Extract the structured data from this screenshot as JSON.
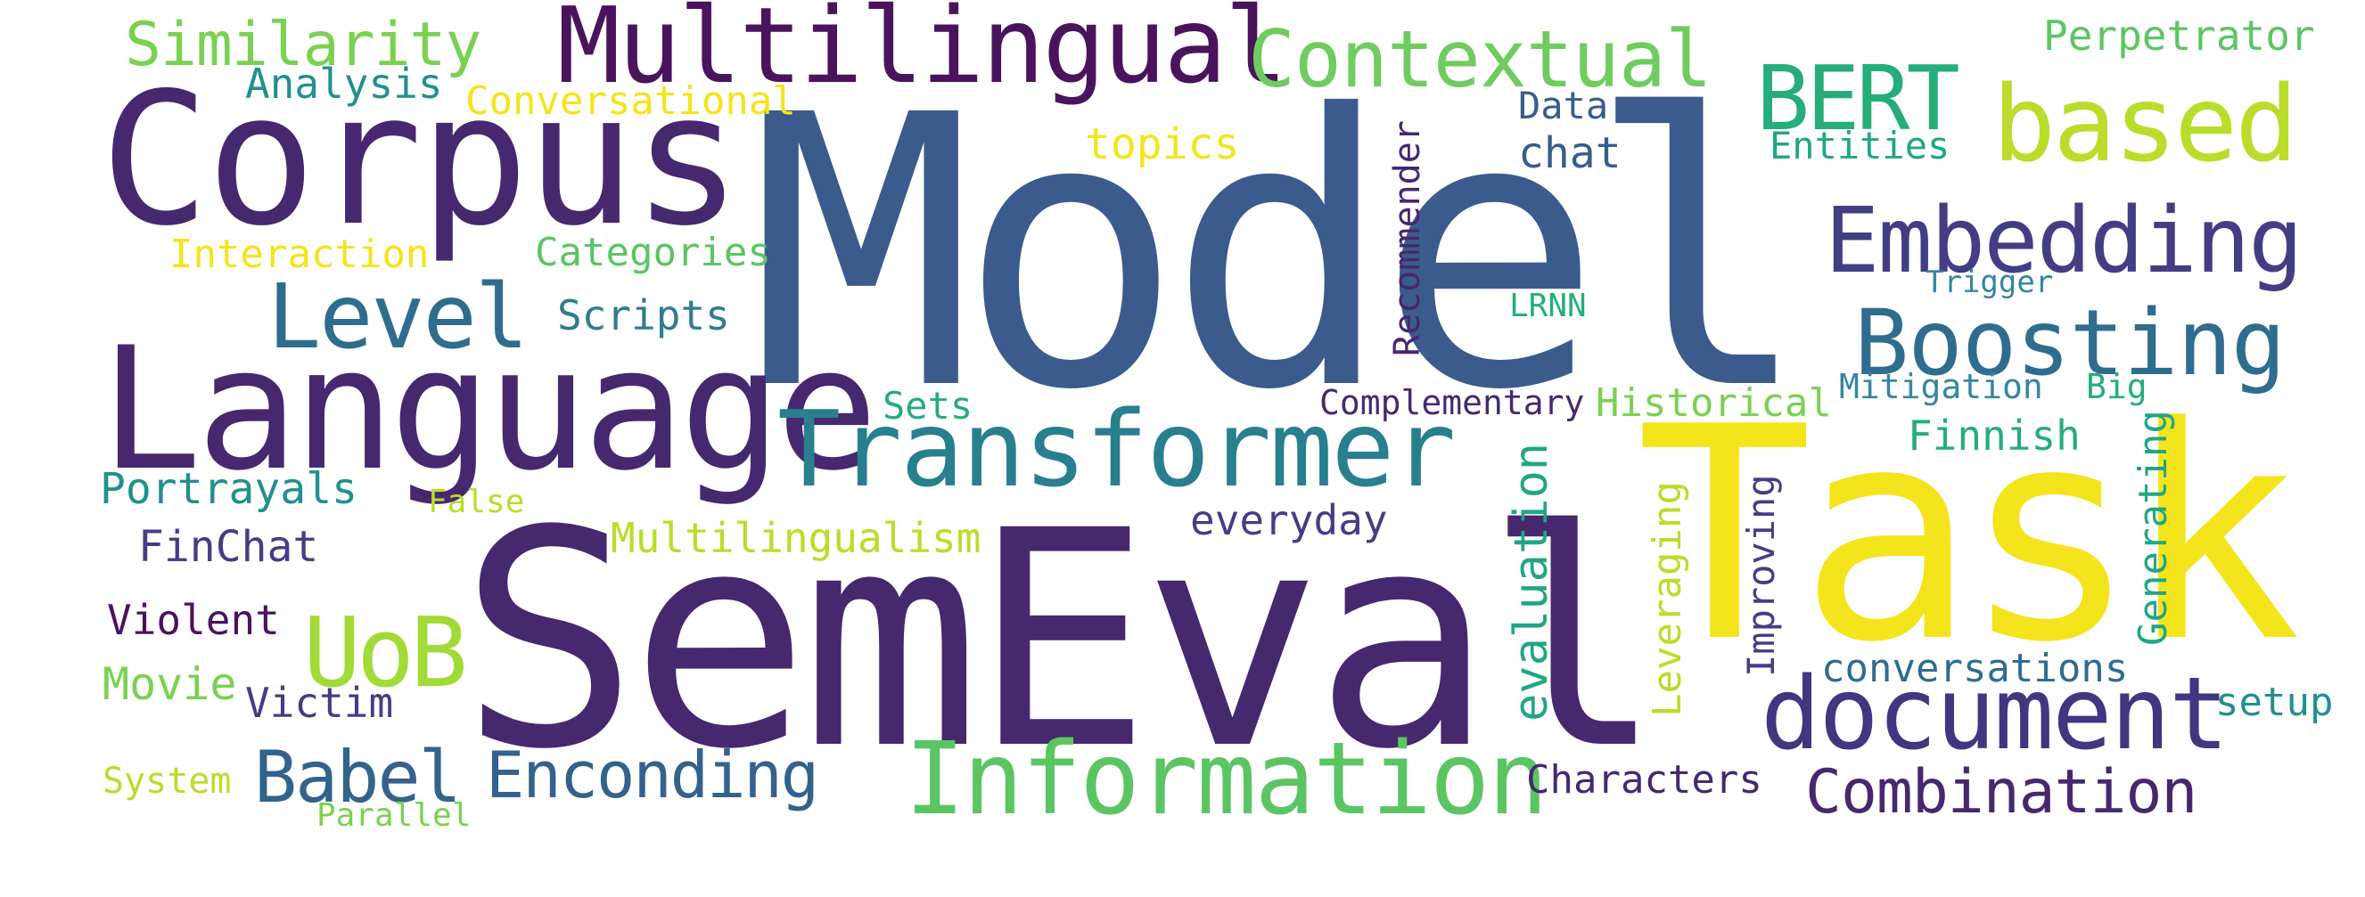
{
  "words": [
    {
      "text": "Model",
      "color": "#3b5b8c",
      "rotated": false
    },
    {
      "text": "SemEval",
      "color": "#46286f",
      "rotated": false
    },
    {
      "text": "Task",
      "color": "#f4e41c",
      "rotated": false
    },
    {
      "text": "Corpus",
      "color": "#46286f",
      "rotated": false
    },
    {
      "text": "Language",
      "color": "#46286f",
      "rotated": false
    },
    {
      "text": "Multilingual",
      "color": "#4a145d",
      "rotated": false
    },
    {
      "text": "Transformer",
      "color": "#287f8e",
      "rotated": false
    },
    {
      "text": "Information",
      "color": "#5cc563",
      "rotated": false
    },
    {
      "text": "document",
      "color": "#3f377f",
      "rotated": false
    },
    {
      "text": "Embedding",
      "color": "#433e84",
      "rotated": false
    },
    {
      "text": "Boosting",
      "color": "#2f6d8e",
      "rotated": false
    },
    {
      "text": "based",
      "color": "#b9dd2a",
      "rotated": false
    },
    {
      "text": "BERT",
      "color": "#25ad7a",
      "rotated": false
    },
    {
      "text": "Contextual",
      "color": "#6fcc5e",
      "rotated": false
    },
    {
      "text": "Level",
      "color": "#2f6d8e",
      "rotated": false
    },
    {
      "text": "Similarity",
      "color": "#7ad151",
      "rotated": false
    },
    {
      "text": "UoB",
      "color": "#a2da37",
      "rotated": false
    },
    {
      "text": "Babel",
      "color": "#33628d",
      "rotated": false
    },
    {
      "text": "Enconding",
      "color": "#33628d",
      "rotated": false
    },
    {
      "text": "Combination",
      "color": "#46286f",
      "rotated": false
    },
    {
      "text": "Perpetrator",
      "color": "#5cc563",
      "rotated": false
    },
    {
      "text": "Analysis",
      "color": "#21908d",
      "rotated": false
    },
    {
      "text": "Conversational",
      "color": "#f4e41c",
      "rotated": false
    },
    {
      "text": "topics",
      "color": "#f4e41c",
      "rotated": false
    },
    {
      "text": "Data",
      "color": "#365e8c",
      "rotated": false
    },
    {
      "text": "chat",
      "color": "#365e8c",
      "rotated": false
    },
    {
      "text": "Entities",
      "color": "#21a685",
      "rotated": false
    },
    {
      "text": "Interaction",
      "color": "#f4e41c",
      "rotated": false
    },
    {
      "text": "Categories",
      "color": "#5cc563",
      "rotated": false
    },
    {
      "text": "Scripts",
      "color": "#2f7d8e",
      "rotated": false
    },
    {
      "text": "Trigger",
      "color": "#3585a3",
      "rotated": false
    },
    {
      "text": "LRNN",
      "color": "#25ad7a",
      "rotated": false
    },
    {
      "text": "Recommender",
      "color": "#46286f",
      "rotated": true
    },
    {
      "text": "Sets",
      "color": "#25ad7a",
      "rotated": false
    },
    {
      "text": "Complementary",
      "color": "#46286f",
      "rotated": false
    },
    {
      "text": "Historical",
      "color": "#7ad151",
      "rotated": false
    },
    {
      "text": "Mitigation",
      "color": "#3585a3",
      "rotated": false
    },
    {
      "text": "Big",
      "color": "#25ad7a",
      "rotated": false
    },
    {
      "text": "Finnish",
      "color": "#25ad7a",
      "rotated": false
    },
    {
      "text": "Portrayals",
      "color": "#21908d",
      "rotated": false
    },
    {
      "text": "False",
      "color": "#b9dd2a",
      "rotated": false
    },
    {
      "text": "Multilingualism",
      "color": "#b9dd2a",
      "rotated": false
    },
    {
      "text": "everyday",
      "color": "#433e84",
      "rotated": false
    },
    {
      "text": "FinChat",
      "color": "#433e84",
      "rotated": false
    },
    {
      "text": "Violent",
      "color": "#4a145d",
      "rotated": false
    },
    {
      "text": "Movie",
      "color": "#7ad151",
      "rotated": false
    },
    {
      "text": "Victim",
      "color": "#433e84",
      "rotated": false
    },
    {
      "text": "System",
      "color": "#b9dd2a",
      "rotated": false
    },
    {
      "text": "Parallel",
      "color": "#7ad151",
      "rotated": false
    },
    {
      "text": "Characters",
      "color": "#46286f",
      "rotated": false
    },
    {
      "text": "conversations",
      "color": "#2f6d8e",
      "rotated": false
    },
    {
      "text": "setup",
      "color": "#21908d",
      "rotated": false
    },
    {
      "text": "evaluation",
      "color": "#21a685",
      "rotated": true
    },
    {
      "text": "Leveraging",
      "color": "#b9dd2a",
      "rotated": true
    },
    {
      "text": "Improving",
      "color": "#433e84",
      "rotated": true
    },
    {
      "text": "Generating",
      "color": "#21a685",
      "rotated": true
    }
  ]
}
